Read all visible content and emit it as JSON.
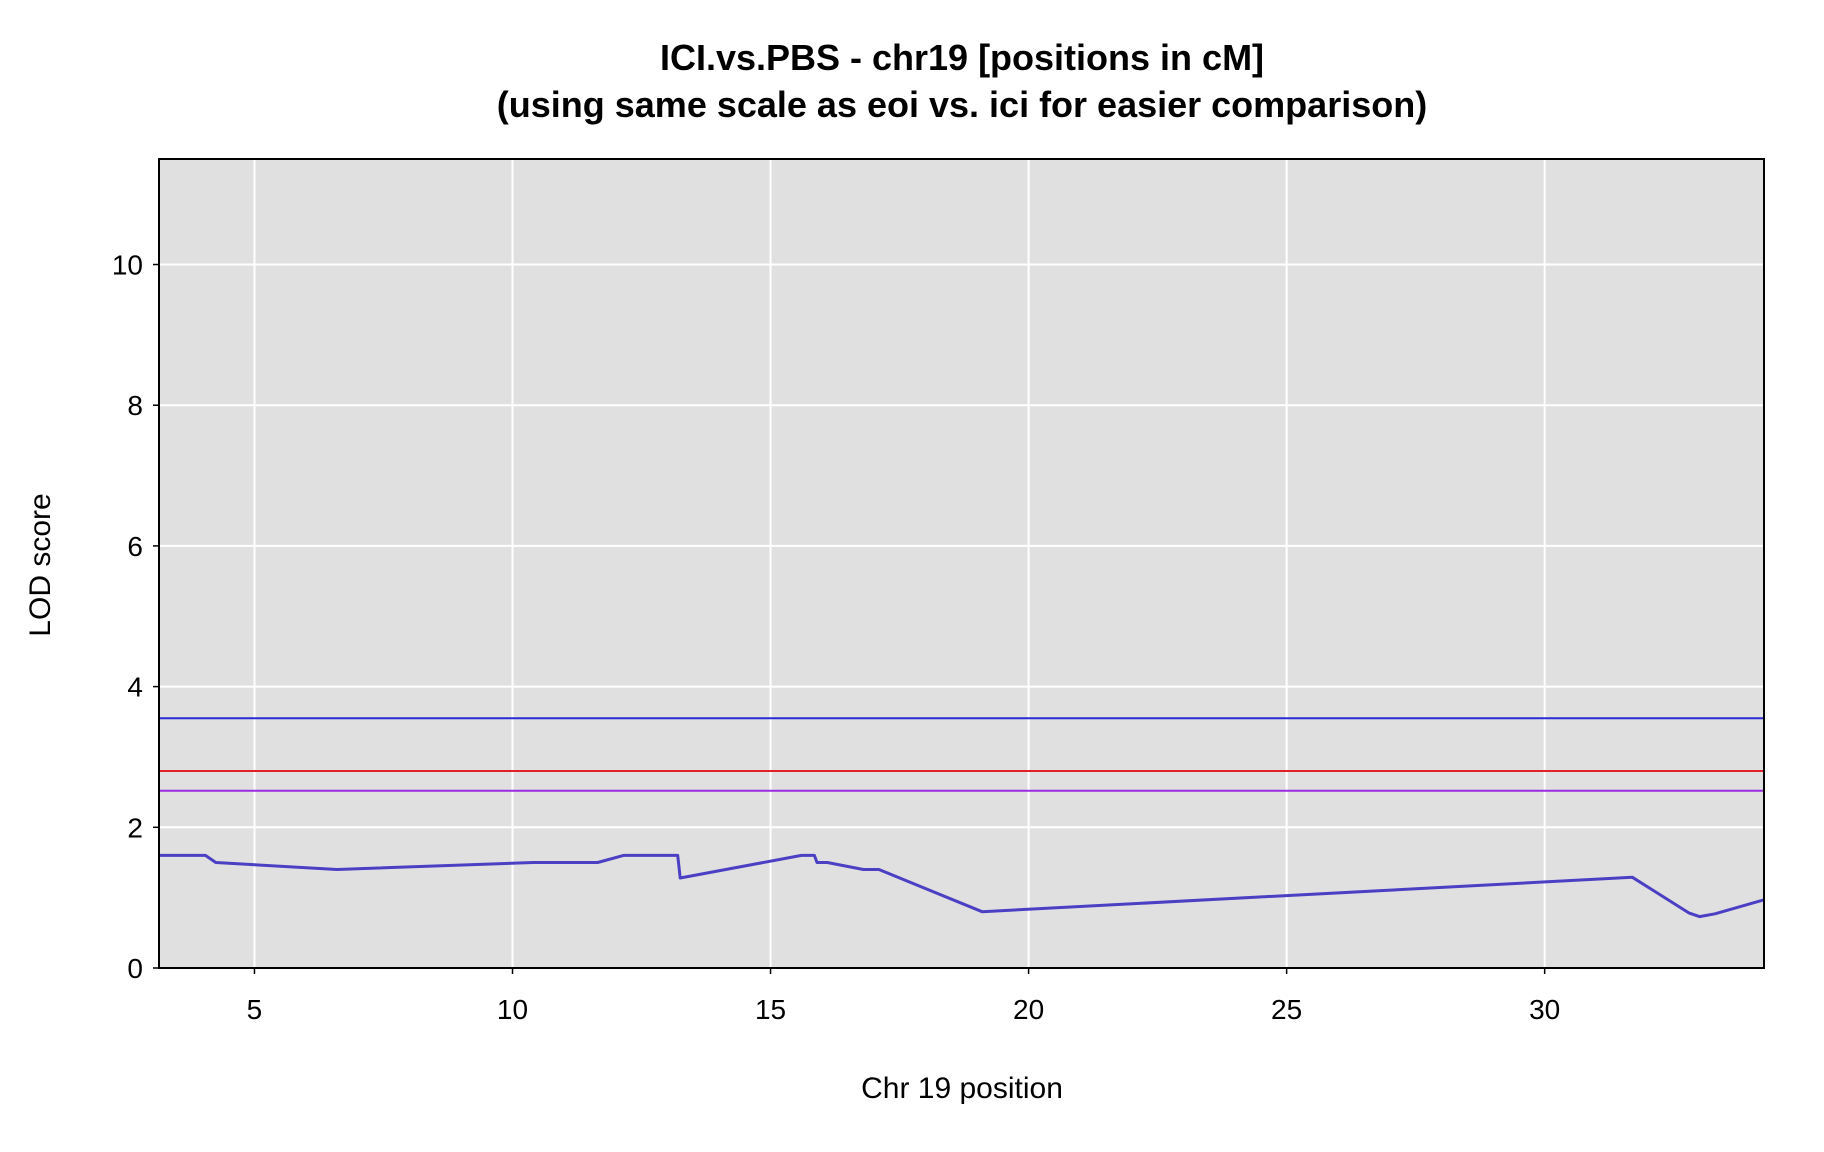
{
  "chart_data": {
    "type": "line",
    "title": "ICI.vs.PBS - chr19 [positions in cM]",
    "subtitle": "(using same scale as eoi vs. ici for easier comparison)",
    "xlabel": "Chr 19 position",
    "ylabel": "LOD score",
    "xlim": [
      3.15,
      34.25
    ],
    "ylim": [
      0,
      11.5
    ],
    "xticks": [
      5,
      10,
      15,
      20,
      25,
      30
    ],
    "yticks": [
      0,
      2,
      4,
      6,
      8,
      10
    ],
    "grid": true,
    "background": "#e0e0e0",
    "series": [
      {
        "color": "#4b3fc4",
        "x": [
          3.15,
          4.05,
          4.25,
          6.6,
          10.4,
          11.65,
          12.15,
          13.2,
          13.25,
          15.6,
          15.85,
          15.9,
          16.1,
          16.8,
          17.1,
          19.1,
          31.7,
          32.8,
          33.0,
          33.3,
          34.25
        ],
        "y": [
          1.6,
          1.6,
          1.5,
          1.4,
          1.5,
          1.5,
          1.6,
          1.6,
          1.28,
          1.6,
          1.6,
          1.5,
          1.5,
          1.4,
          1.4,
          0.8,
          1.29,
          0.78,
          0.73,
          0.77,
          0.97
        ]
      }
    ],
    "threshold_lines": [
      {
        "y": 3.55,
        "color": "#2b2bd6"
      },
      {
        "y": 2.8,
        "color": "#e0202a"
      },
      {
        "y": 2.52,
        "color": "#9a2be0"
      }
    ]
  }
}
